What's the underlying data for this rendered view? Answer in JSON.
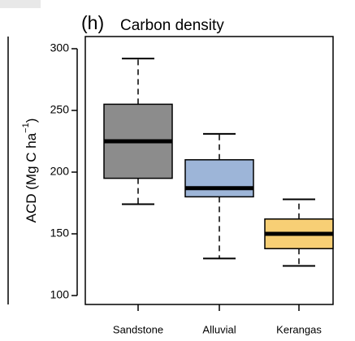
{
  "chart_data": {
    "type": "box",
    "panel": "(h)",
    "title": "Carbon density",
    "ylabel": {
      "text": "ACD (Mg C  ha",
      "sup": "−1",
      "close": ")"
    },
    "categories": [
      "Sandstone",
      "Alluvial",
      "Kerangas"
    ],
    "boxes": [
      {
        "whisker_low": 174,
        "q1": 195,
        "median": 225,
        "q3": 255,
        "whisker_high": 292,
        "color": "#8c8c8c"
      },
      {
        "whisker_low": 130,
        "q1": 180,
        "median": 187,
        "q3": 210,
        "whisker_high": 231,
        "color": "#9db5d8"
      },
      {
        "whisker_low": 124,
        "q1": 138,
        "median": 150,
        "q3": 162,
        "whisker_high": 178,
        "color": "#f7cf75"
      }
    ],
    "ylim": [
      100,
      300
    ],
    "yticks": [
      100,
      150,
      200,
      250,
      300
    ]
  }
}
